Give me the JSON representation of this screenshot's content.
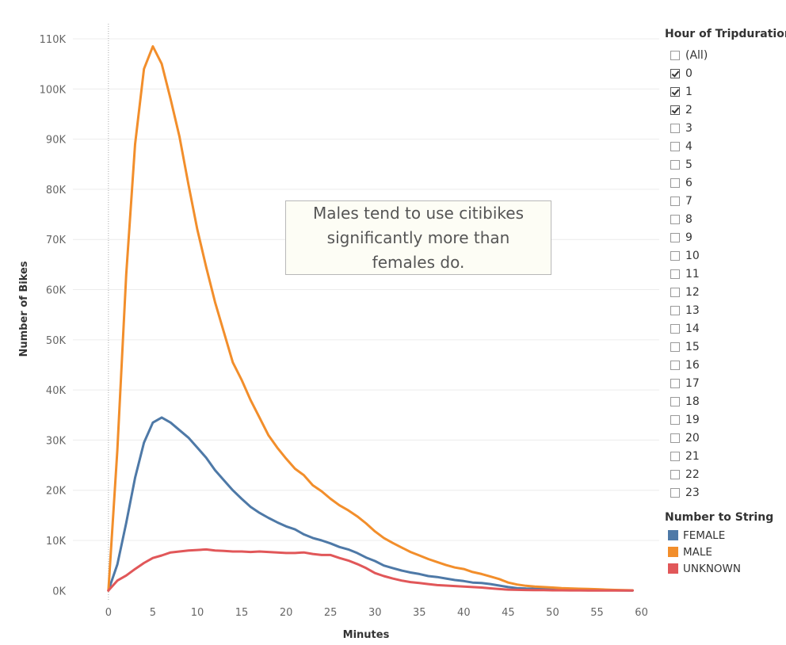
{
  "filter": {
    "title": "Hour of Tripduration",
    "items": [
      {
        "label": "(All)",
        "checked": false
      },
      {
        "label": "0",
        "checked": true
      },
      {
        "label": "1",
        "checked": true
      },
      {
        "label": "2",
        "checked": true
      },
      {
        "label": "3",
        "checked": false
      },
      {
        "label": "4",
        "checked": false
      },
      {
        "label": "5",
        "checked": false
      },
      {
        "label": "6",
        "checked": false
      },
      {
        "label": "7",
        "checked": false
      },
      {
        "label": "8",
        "checked": false
      },
      {
        "label": "9",
        "checked": false
      },
      {
        "label": "10",
        "checked": false
      },
      {
        "label": "11",
        "checked": false
      },
      {
        "label": "12",
        "checked": false
      },
      {
        "label": "13",
        "checked": false
      },
      {
        "label": "14",
        "checked": false
      },
      {
        "label": "15",
        "checked": false
      },
      {
        "label": "16",
        "checked": false
      },
      {
        "label": "17",
        "checked": false
      },
      {
        "label": "18",
        "checked": false
      },
      {
        "label": "19",
        "checked": false
      },
      {
        "label": "20",
        "checked": false
      },
      {
        "label": "21",
        "checked": false
      },
      {
        "label": "22",
        "checked": false
      },
      {
        "label": "23",
        "checked": false
      }
    ]
  },
  "legend": {
    "title": "Number to String",
    "items": [
      {
        "label": "FEMALE",
        "color": "#4e79a7"
      },
      {
        "label": "MALE",
        "color": "#f28e2b"
      },
      {
        "label": "UNKNOWN",
        "color": "#e15759"
      }
    ]
  },
  "annotation": {
    "text": "Males tend to use citibikes significantly more than females do."
  },
  "chart_data": {
    "type": "line",
    "xlabel": "Minutes",
    "ylabel": "Number of Bikes",
    "xlim": [
      -4,
      62
    ],
    "ylim": [
      -2000,
      113000
    ],
    "x_ticks": [
      0,
      5,
      10,
      15,
      20,
      25,
      30,
      35,
      40,
      45,
      50,
      55,
      60
    ],
    "y_ticks": [
      0,
      10000,
      20000,
      30000,
      40000,
      50000,
      60000,
      70000,
      80000,
      90000,
      100000,
      110000
    ],
    "y_tick_labels": [
      "0K",
      "10K",
      "20K",
      "30K",
      "40K",
      "50K",
      "60K",
      "70K",
      "80K",
      "90K",
      "100K",
      "110K"
    ],
    "grid": true,
    "legend_position": "right",
    "x": [
      0,
      1,
      2,
      3,
      4,
      5,
      6,
      7,
      8,
      9,
      10,
      11,
      12,
      13,
      14,
      15,
      16,
      17,
      18,
      19,
      20,
      21,
      22,
      23,
      24,
      25,
      26,
      27,
      28,
      29,
      30,
      31,
      32,
      33,
      34,
      35,
      36,
      37,
      38,
      39,
      40,
      41,
      42,
      43,
      44,
      45,
      46,
      47,
      48,
      49,
      50,
      51,
      52,
      53,
      54,
      55,
      56,
      57,
      58,
      59
    ],
    "series": [
      {
        "name": "FEMALE",
        "color": "#4e79a7",
        "values": [
          0,
          5200,
          13500,
          22500,
          29500,
          33500,
          34500,
          33500,
          32000,
          30500,
          28500,
          26500,
          24000,
          22000,
          20000,
          18300,
          16700,
          15500,
          14500,
          13600,
          12800,
          12200,
          11200,
          10500,
          10000,
          9400,
          8700,
          8200,
          7500,
          6600,
          5900,
          5000,
          4500,
          4000,
          3600,
          3300,
          2900,
          2700,
          2400,
          2100,
          1900,
          1600,
          1500,
          1300,
          1000,
          700,
          500,
          400,
          350,
          300,
          250,
          200,
          180,
          150,
          120,
          100,
          80,
          60,
          40,
          20
        ]
      },
      {
        "name": "MALE",
        "color": "#f28e2b",
        "values": [
          0,
          28000,
          63000,
          89000,
          104000,
          108500,
          105000,
          98000,
          90500,
          81000,
          72000,
          64500,
          57500,
          51500,
          45500,
          42000,
          38000,
          34500,
          31000,
          28500,
          26300,
          24300,
          23000,
          21000,
          19800,
          18300,
          17000,
          16000,
          14800,
          13400,
          11800,
          10500,
          9500,
          8600,
          7700,
          7000,
          6300,
          5700,
          5100,
          4600,
          4300,
          3700,
          3300,
          2800,
          2300,
          1600,
          1200,
          950,
          800,
          700,
          600,
          500,
          430,
          370,
          320,
          280,
          200,
          140,
          90,
          50
        ]
      },
      {
        "name": "UNKNOWN",
        "color": "#e15759",
        "values": [
          0,
          2000,
          3000,
          4300,
          5500,
          6500,
          7000,
          7600,
          7800,
          8000,
          8100,
          8200,
          8000,
          7900,
          7800,
          7800,
          7700,
          7800,
          7700,
          7600,
          7500,
          7500,
          7600,
          7300,
          7100,
          7100,
          6500,
          6000,
          5300,
          4500,
          3500,
          2900,
          2400,
          2000,
          1700,
          1500,
          1300,
          1100,
          1000,
          900,
          800,
          700,
          600,
          450,
          300,
          200,
          150,
          120,
          100,
          80,
          60,
          50,
          40,
          30,
          25,
          20,
          15,
          10,
          10,
          5
        ]
      }
    ]
  }
}
